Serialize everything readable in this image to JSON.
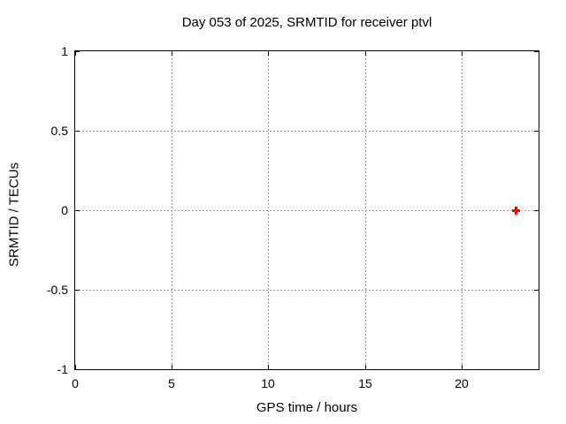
{
  "chart_data": {
    "type": "scatter",
    "title": "Day 053 of 2025, SRMTID for receiver ptvl",
    "xlabel": "GPS time / hours",
    "ylabel": "SRMTID / TECUs",
    "xlim": [
      0,
      24
    ],
    "ylim": [
      -1,
      1
    ],
    "x_ticks": {
      "values": [
        0,
        5,
        10,
        15,
        20
      ],
      "labels": [
        "0",
        "5",
        "10",
        "15",
        "20"
      ]
    },
    "y_ticks": {
      "values": [
        -1,
        -0.5,
        0,
        0.5,
        1
      ],
      "labels": [
        "-1",
        "-0.5",
        "0",
        "0.5",
        "1"
      ]
    },
    "grid": true,
    "legend": "none",
    "series": [
      {
        "name": "srmtid",
        "marker": "plus",
        "color": "#ff0000",
        "points": [
          [
            22.8,
            0.0
          ]
        ]
      }
    ]
  },
  "colors": {
    "background": "#ffffff",
    "axis_border": "#000000",
    "grid": "#9c9c9c",
    "text": "#000000",
    "marker": "#ff0000"
  }
}
